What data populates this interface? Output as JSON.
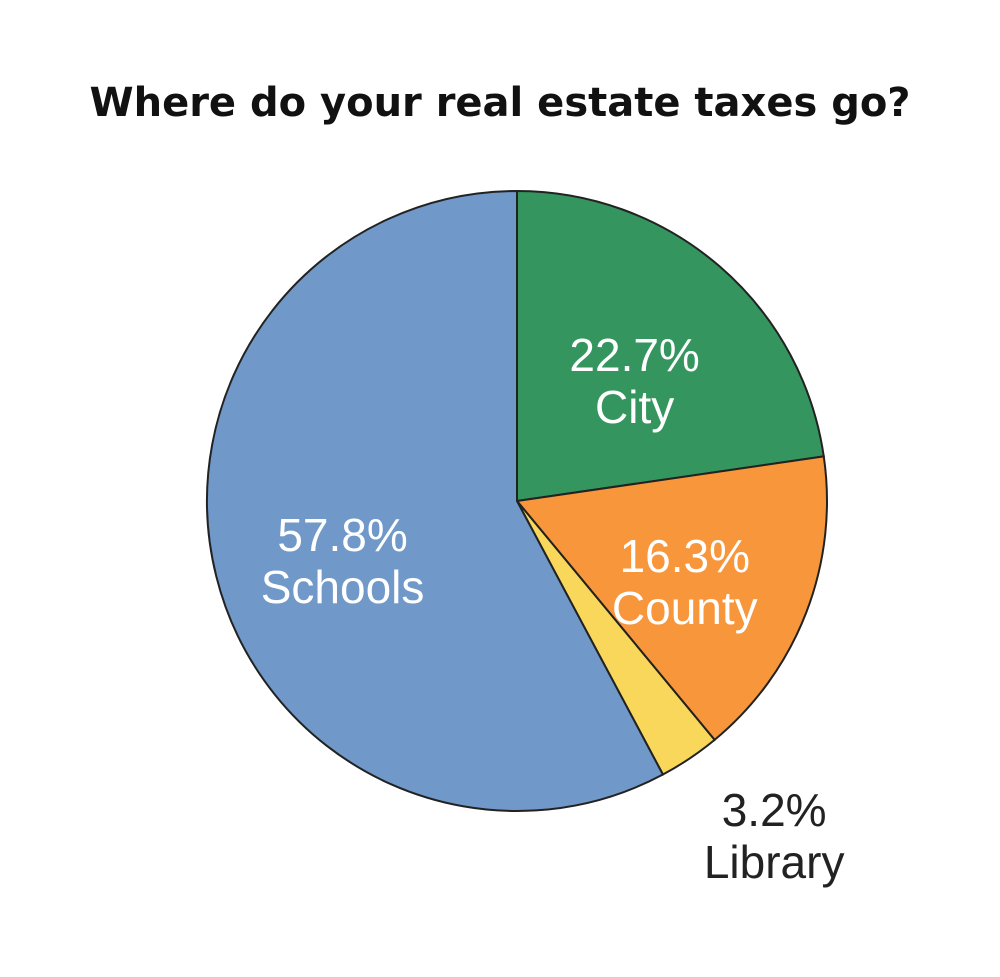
{
  "chart_data": {
    "type": "pie",
    "title": "Where do your real estate taxes go?",
    "categories": [
      "City",
      "County",
      "Library",
      "Schools"
    ],
    "values": [
      22.7,
      16.3,
      3.2,
      57.8
    ],
    "value_labels": [
      "22.7%",
      "16.3%",
      "3.2%",
      "57.8%"
    ],
    "colors": [
      "#34965e",
      "#f7963a",
      "#f8d75a",
      "#7098c8"
    ]
  }
}
